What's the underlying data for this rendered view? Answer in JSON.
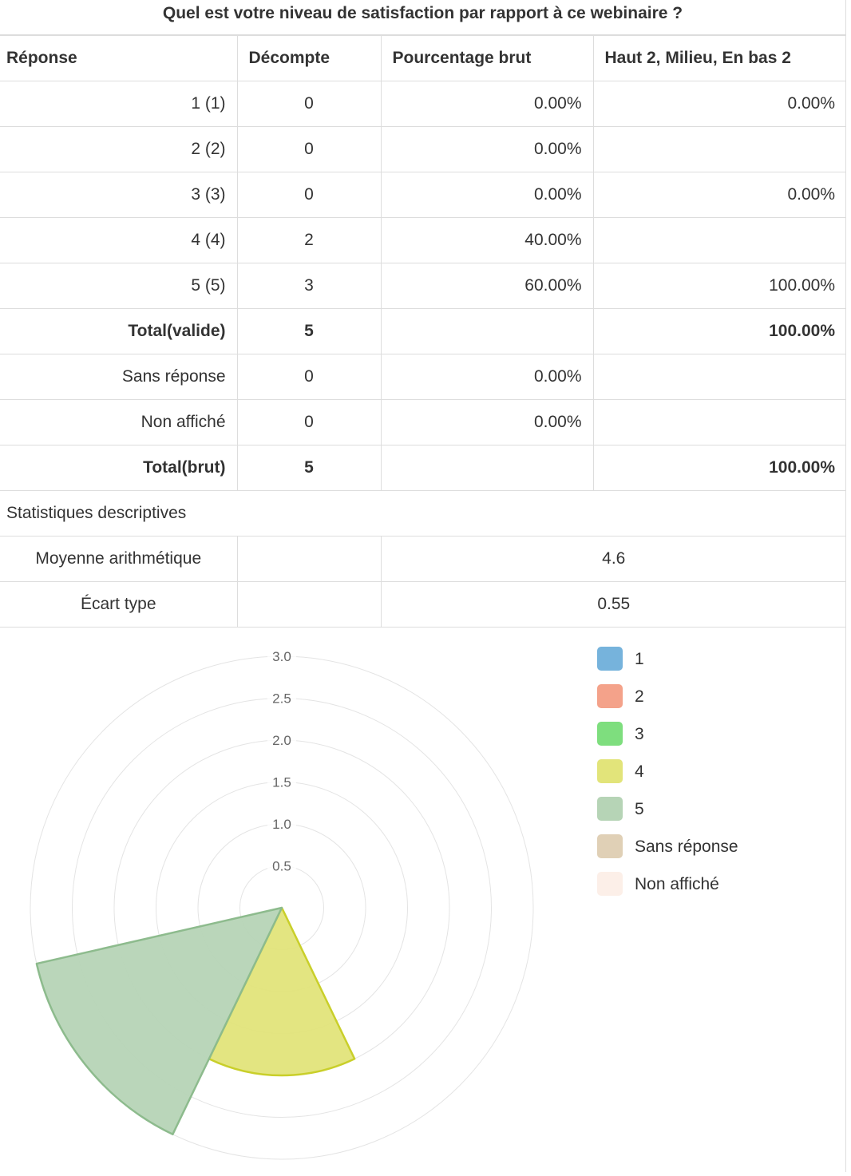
{
  "title": "Quel est votre niveau de satisfaction par rapport à ce webinaire ?",
  "table": {
    "headers": [
      "Réponse",
      "Décompte",
      "Pourcentage brut",
      "Haut 2, Milieu, En bas 2"
    ],
    "rows": [
      {
        "label": "1 (1)",
        "count": "0",
        "pct": "0.00%",
        "group": "0.00%",
        "bold": false
      },
      {
        "label": "2 (2)",
        "count": "0",
        "pct": "0.00%",
        "group": "",
        "bold": false
      },
      {
        "label": "3 (3)",
        "count": "0",
        "pct": "0.00%",
        "group": "0.00%",
        "bold": false
      },
      {
        "label": "4 (4)",
        "count": "2",
        "pct": "40.00%",
        "group": "",
        "bold": false
      },
      {
        "label": "5 (5)",
        "count": "3",
        "pct": "60.00%",
        "group": "100.00%",
        "bold": false
      },
      {
        "label": "Total(valide)",
        "count": "5",
        "pct": "",
        "group": "100.00%",
        "bold": true
      },
      {
        "label": "Sans réponse",
        "count": "0",
        "pct": "0.00%",
        "group": "",
        "bold": false
      },
      {
        "label": "Non affiché",
        "count": "0",
        "pct": "0.00%",
        "group": "",
        "bold": false
      },
      {
        "label": "Total(brut)",
        "count": "5",
        "pct": "",
        "group": "100.00%",
        "bold": true
      }
    ]
  },
  "stats": {
    "heading": "Statistiques descriptives",
    "rows": [
      {
        "label": "Moyenne arithmétique",
        "value": "4.6"
      },
      {
        "label": "Écart type",
        "value": "0.55"
      }
    ]
  },
  "chart_data": {
    "type": "polarArea",
    "categories": [
      "1",
      "2",
      "3",
      "4",
      "5",
      "Sans réponse",
      "Non affiché"
    ],
    "values": [
      0,
      0,
      0,
      2,
      3,
      0,
      0
    ],
    "colors": [
      "#76b3dc",
      "#f4a28a",
      "#7ede7e",
      "#e2e47a",
      "#b6d4b6",
      "#e0d0b6",
      "#fcefe8"
    ],
    "border_colors": [
      "#5a9cc8",
      "#e8826a",
      "#55c655",
      "#c9cf2a",
      "#8dbb8d",
      "#c8b48f",
      "#f0d8cc"
    ],
    "ticks": [
      "0.5",
      "1.0",
      "1.5",
      "2.0",
      "2.5",
      "3.0"
    ],
    "r_range": [
      0,
      3.0
    ],
    "legend_position": "right",
    "grid": true
  }
}
